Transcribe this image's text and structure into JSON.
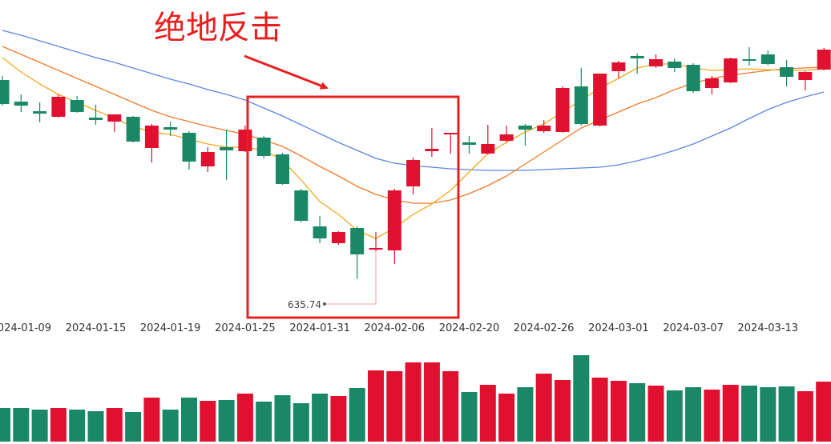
{
  "chart_data": {
    "type": "candlestick",
    "title": "绝地反击",
    "categories": [
      null,
      "2024-01-09",
      null,
      null,
      null,
      "2024-01-15",
      null,
      null,
      null,
      "2024-01-19",
      null,
      null,
      null,
      "2024-01-25",
      null,
      null,
      null,
      "2024-01-31",
      null,
      null,
      null,
      "2024-02-06",
      null,
      null,
      null,
      "2024-02-20",
      null,
      null,
      null,
      "2024-02-26",
      null,
      null,
      null,
      "2024-03-01",
      null,
      null,
      null,
      "2024-03-07",
      null,
      null,
      null,
      "2024-03-13",
      null,
      null,
      null
    ],
    "open": [
      760,
      746.5,
      740.5,
      737,
      747.5,
      736.5,
      734,
      737,
      717.5,
      730.5,
      727,
      706,
      718,
      715.5,
      724,
      713.5,
      691,
      668.5,
      658,
      667.5,
      654,
      653.5,
      693.5,
      715.5,
      726,
      721,
      714,
      722,
      731.5,
      728,
      727.5,
      756,
      731.5,
      765.5,
      775,
      768.5,
      771.5,
      769.5,
      755,
      758.5,
      773,
      776,
      768,
      760,
      766.5
    ],
    "high": [
      762.5,
      751,
      746,
      751,
      750,
      744.5,
      738.5,
      737.5,
      732.5,
      734,
      728,
      718,
      729,
      731.5,
      725,
      714.5,
      692,
      675,
      665.5,
      668.5,
      665,
      692,
      711.5,
      730,
      727,
      725,
      732,
      731.5,
      732.5,
      735,
      756,
      767.5,
      764,
      772,
      776.5,
      776,
      773.5,
      770.5,
      762.5,
      774,
      780.5,
      778.5,
      772.5,
      765.5,
      780
    ],
    "low": [
      744,
      740,
      733.5,
      736.5,
      739.5,
      732,
      727.5,
      721,
      708.5,
      725,
      704,
      702.5,
      697.5,
      715,
      711,
      694.5,
      671,
      658,
      657,
      635.74,
      652.5,
      645,
      688.5,
      712,
      714,
      714,
      713.5,
      721,
      719,
      727,
      727,
      731.5,
      731,
      761,
      764,
      767.5,
      765,
      752,
      751,
      758,
      769,
      769,
      756,
      753.5,
      766
    ],
    "close": [
      745,
      744,
      739,
      749.5,
      740,
      735,
      738.5,
      721.5,
      731.5,
      729,
      709,
      715,
      716,
      729,
      712.5,
      695,
      672,
      661,
      665,
      651,
      655,
      691,
      710,
      717,
      727,
      719.5,
      720,
      726,
      729,
      731.5,
      755,
      732.5,
      764,
      771,
      773.5,
      773,
      767.5,
      753,
      761,
      773.5,
      772,
      770,
      762,
      765,
      779
    ],
    "volume": [
      42,
      42,
      40,
      42,
      40,
      38,
      42,
      37,
      55,
      40,
      55,
      51,
      52,
      60,
      50,
      58,
      48,
      60,
      57,
      67,
      89,
      88,
      99,
      99,
      88,
      62,
      71,
      60,
      68,
      85,
      77,
      108,
      80,
      76,
      73,
      70,
      64,
      68,
      65,
      71,
      70,
      68,
      69,
      63,
      75
    ],
    "up_color": "#e0102f",
    "down_color": "#1a8766",
    "ylim": [
      612.5,
      810
    ],
    "vlim": [
      0,
      110
    ],
    "ma_lines": [
      {
        "color": "#5b86e5",
        "values": [
          791,
          788,
          784.5,
          781,
          777.5,
          774,
          771,
          767.5,
          764,
          760.5,
          757.5,
          754,
          751,
          747.5,
          742.5,
          737.5,
          732,
          726.5,
          721,
          716,
          711,
          708,
          706.5,
          705.5,
          704.5,
          704,
          703.5,
          703.5,
          703.5,
          704,
          704.5,
          705,
          705.5,
          707,
          709.5,
          712.5,
          716,
          720,
          725,
          730,
          736,
          741.5,
          746,
          749.5,
          752.5
        ]
      },
      {
        "color": "#f07a2a",
        "values": [
          781,
          776,
          771,
          766,
          761,
          756,
          751,
          746,
          741,
          737,
          734,
          731,
          728.5,
          726,
          722.5,
          718.5,
          712.5,
          706,
          700,
          693.5,
          688.5,
          685,
          683,
          683,
          685,
          689,
          694,
          700,
          707.5,
          715,
          722.5,
          730,
          735,
          740,
          745,
          749,
          754,
          758,
          761,
          763,
          764.5,
          766,
          767,
          767.5,
          768
        ]
      },
      {
        "color": "#f2a81d",
        "values": [
          774,
          765,
          757.5,
          751,
          746,
          741,
          736,
          731,
          727.5,
          726,
          723,
          720,
          718,
          718,
          716,
          710,
          697.5,
          684,
          676,
          666,
          661,
          667.5,
          676,
          682.5,
          691,
          702.5,
          714,
          721,
          727.5,
          732.5,
          740,
          747.5,
          755,
          761,
          767.5,
          770,
          770,
          767.5,
          766,
          766.5,
          767,
          766.5,
          766,
          766,
          767
        ]
      }
    ]
  }
}
